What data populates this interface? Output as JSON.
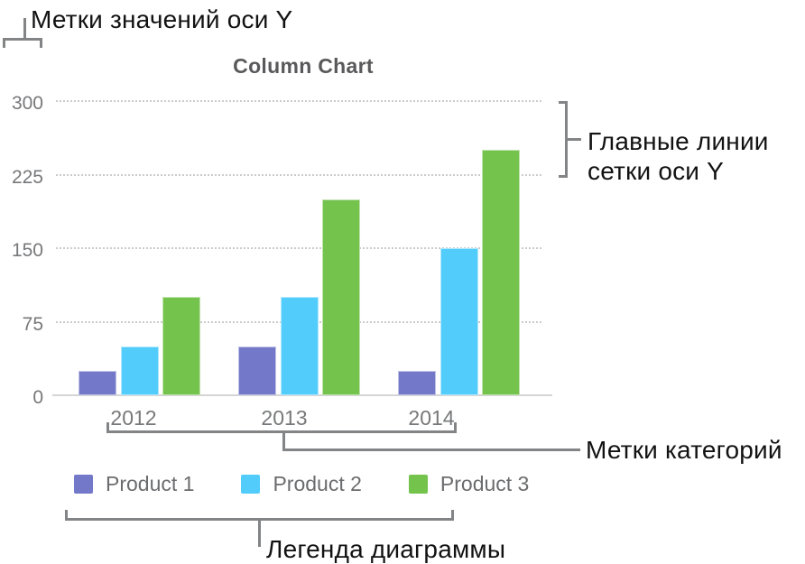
{
  "annotations": {
    "y_value_labels": "Метки значений оси Y",
    "y_gridlines_line1": "Главные линии",
    "y_gridlines_line2": "сетки оси Y",
    "category_labels": "Метки категорий",
    "legend": "Легенда диаграммы"
  },
  "chart_data": {
    "type": "bar",
    "title": "Column Chart",
    "categories": [
      "2012",
      "2013",
      "2014"
    ],
    "series": [
      {
        "name": "Product 1",
        "color": "#7379C8",
        "values": [
          25,
          50,
          25
        ]
      },
      {
        "name": "Product 2",
        "color": "#51CCFB",
        "values": [
          50,
          100,
          150
        ]
      },
      {
        "name": "Product 3",
        "color": "#73C34D",
        "values": [
          100,
          200,
          250
        ]
      }
    ],
    "ylabel": "",
    "xlabel": "",
    "ylim": [
      0,
      300
    ],
    "y_ticks": [
      0,
      75,
      150,
      225,
      300
    ],
    "grid": "horizontal-dotted",
    "legend_position": "bottom"
  },
  "colors": {
    "annotation_text": "#121212",
    "bracket_line": "#838486",
    "axis_text": "#77787a",
    "title_text": "#59595b",
    "gridline": "#cbcbcb",
    "axis_line": "#d5d5d5"
  }
}
